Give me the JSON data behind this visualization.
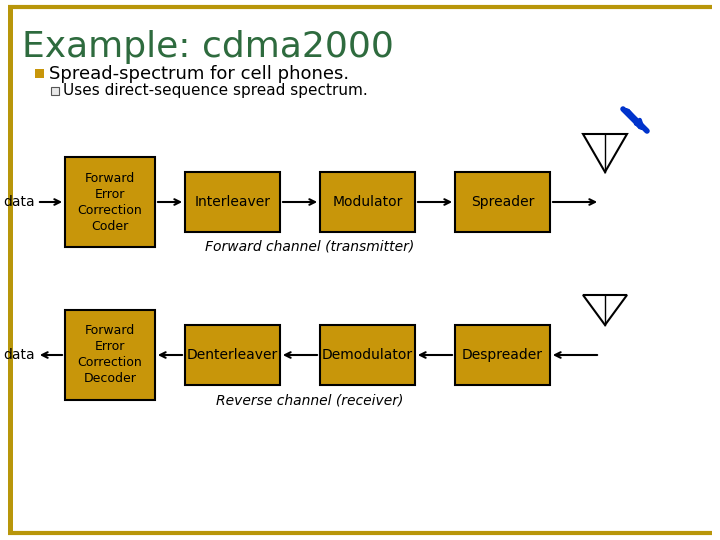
{
  "title": "Example: cdma2000",
  "title_color": "#2E6B3E",
  "bullet1": "Spread-spectrum for cell phones.",
  "bullet2": "Uses direct-sequence spread spectrum.",
  "box_color": "#C8960A",
  "box_edge_color": "#000000",
  "box_text_color": "#000000",
  "bg_color": "#FFFFFF",
  "border_color": "#B8960A",
  "top_row_boxes": [
    "Forward\nError\nCorrection\nCoder",
    "Interleaver",
    "Modulator",
    "Spreader"
  ],
  "bottom_row_boxes": [
    "Forward\nError\nCorrection\nDecoder",
    "Denterleaver",
    "Demodulator",
    "Despreader"
  ],
  "forward_label": "Forward channel (transmitter)",
  "reverse_label": "Reverse channel (receiver)",
  "data_label": "data"
}
